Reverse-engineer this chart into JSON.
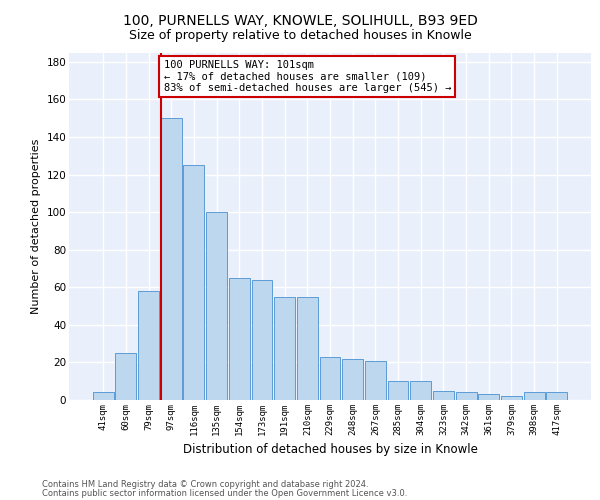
{
  "title1": "100, PURNELLS WAY, KNOWLE, SOLIHULL, B93 9ED",
  "title2": "Size of property relative to detached houses in Knowle",
  "xlabel": "Distribution of detached houses by size in Knowle",
  "ylabel": "Number of detached properties",
  "categories": [
    "41sqm",
    "60sqm",
    "79sqm",
    "97sqm",
    "116sqm",
    "135sqm",
    "154sqm",
    "173sqm",
    "191sqm",
    "210sqm",
    "229sqm",
    "248sqm",
    "267sqm",
    "285sqm",
    "304sqm",
    "323sqm",
    "342sqm",
    "361sqm",
    "379sqm",
    "398sqm",
    "417sqm"
  ],
  "values": [
    4,
    25,
    58,
    150,
    125,
    100,
    65,
    64,
    55,
    55,
    23,
    22,
    21,
    10,
    10,
    5,
    4,
    3,
    2,
    4,
    4
  ],
  "bar_color": "#BDD7EE",
  "bar_edge_color": "#5B9BD5",
  "annotation_line1": "100 PURNELLS WAY: 101sqm",
  "annotation_line2": "← 17% of detached houses are smaller (109)",
  "annotation_line3": "83% of semi-detached houses are larger (545) →",
  "ylim": [
    0,
    185
  ],
  "yticks": [
    0,
    20,
    40,
    60,
    80,
    100,
    120,
    140,
    160,
    180
  ],
  "bg_color": "#EAF0FB",
  "grid_color": "#FFFFFF",
  "footer_text1": "Contains HM Land Registry data © Crown copyright and database right 2024.",
  "footer_text2": "Contains public sector information licensed under the Open Government Licence v3.0."
}
